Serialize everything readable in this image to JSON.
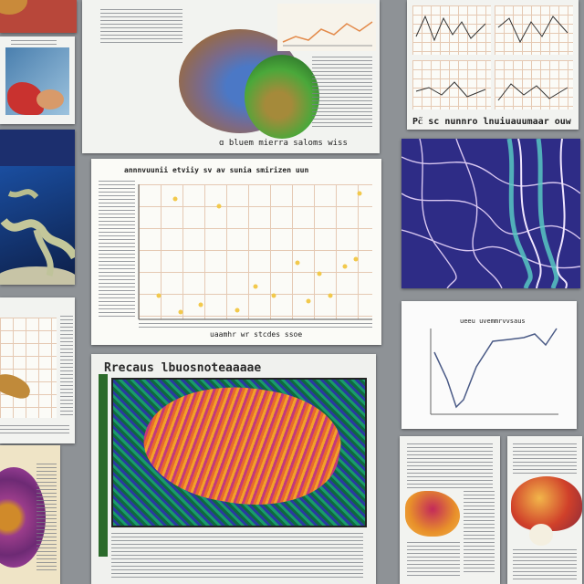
{
  "board": {
    "background": "#8e9296",
    "figures": [
      {
        "caption": "ɑ bluem mierra saloms wiss"
      },
      {
        "caption": "Ρ̃ᴄ sc nunnro lnuiuauumaar ouw"
      },
      {
        "caption": "annnvuunii etviiy sv av sunia smirizen uun"
      },
      {
        "caption": "uaamhr wr stcdes ssoe"
      },
      {
        "caption": "ueeu uvemmrvvsaus"
      },
      {
        "caption": "Rrecaus lbuosnoteaaaae"
      }
    ]
  },
  "colors": {
    "panel_paper": "#f2f3f0",
    "scatter_points": "#f2c94c",
    "grid_line": "#e5c9b3",
    "plot_line": "#4a5a86"
  }
}
